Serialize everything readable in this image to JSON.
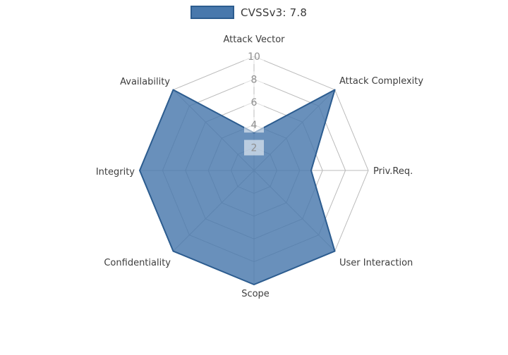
{
  "legend": {
    "label": "CVSSv3: 7.8",
    "swatch_fill": "#4878AC",
    "swatch_border": "#2C5C8F"
  },
  "chart_data": {
    "type": "radar",
    "title": "",
    "categories": [
      "Attack Vector",
      "Attack Complexity",
      "Priv.Req.",
      "User Interaction",
      "Scope",
      "Confidentiality",
      "Integrity",
      "Availability"
    ],
    "series": [
      {
        "name": "CVSSv3: 7.8",
        "values": [
          3.3,
          10,
          5,
          10,
          10,
          10,
          10,
          10
        ]
      }
    ],
    "ticks": [
      2,
      4,
      6,
      8,
      10
    ],
    "range": [
      0,
      10
    ],
    "direction": "clockwise-from-top",
    "grid": true,
    "legend_position": "top-center",
    "colors": {
      "fill": "#4878AC",
      "fill_opacity": 0.82,
      "stroke": "#2C5C8F",
      "grid": "#BBBBBB",
      "axis_label": "#3D3D3D",
      "tick_label": "#8F8F8F",
      "tick_box": "rgba(255,255,255,0.55)"
    }
  }
}
